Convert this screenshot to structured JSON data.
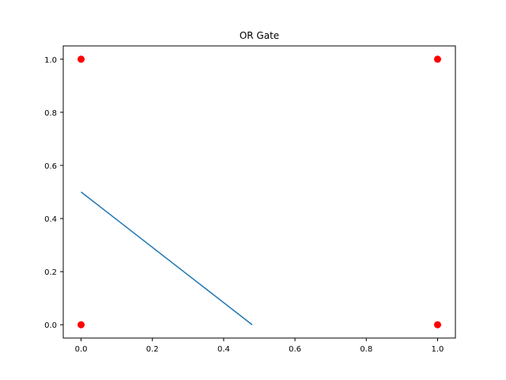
{
  "chart_data": {
    "type": "scatter",
    "title": "OR Gate",
    "xlabel": "",
    "ylabel": "",
    "xlim": [
      -0.05,
      1.05
    ],
    "ylim": [
      -0.05,
      1.05
    ],
    "xticks": [
      "0.0",
      "0.2",
      "0.4",
      "0.6",
      "0.8",
      "1.0"
    ],
    "yticks": [
      "0.0",
      "0.2",
      "0.4",
      "0.6",
      "0.8",
      "1.0"
    ],
    "grid": false,
    "series": [
      {
        "kind": "scatter",
        "color": "#ff0000",
        "points": [
          [
            0,
            0
          ],
          [
            0,
            1
          ],
          [
            1,
            0
          ],
          [
            1,
            1
          ]
        ]
      },
      {
        "kind": "line",
        "color": "#1f77b4",
        "points": [
          [
            0,
            0.5
          ],
          [
            0.48,
            0.0
          ]
        ]
      }
    ]
  }
}
